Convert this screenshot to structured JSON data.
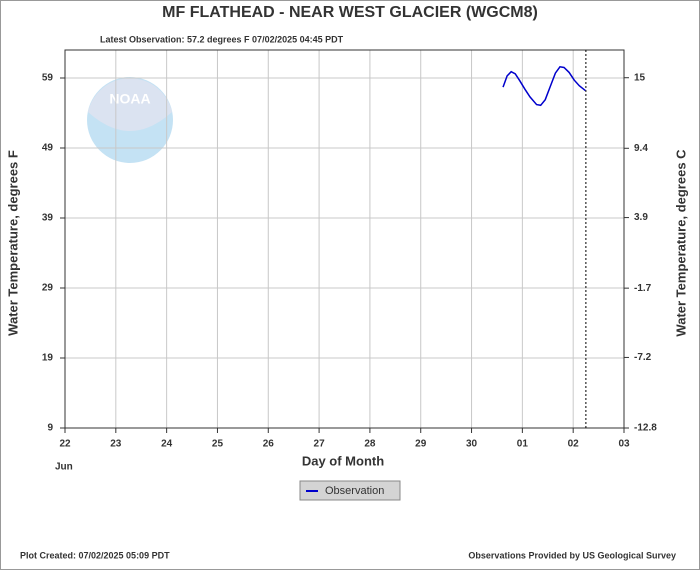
{
  "chart_data": {
    "type": "line",
    "title": "MF FLATHEAD - NEAR WEST GLACIER  (WGCM8)",
    "subtitle": "Latest Observation: 57.2 degrees F 07/02/2025 04:45 PDT",
    "ylabel": "Water Temperature, degrees F",
    "y2label": "Water Temperature, degrees C",
    "xlabel": "Day of Month",
    "month_label": "Jun",
    "logo_text": "NOAA",
    "footer_left": "Plot Created: 07/02/2025 05:09 PDT",
    "footer_right": "Observations Provided by US Geological Survey",
    "xlim": [
      0,
      11
    ],
    "xticks": [
      {
        "value": 0,
        "label": "22"
      },
      {
        "value": 1,
        "label": "23"
      },
      {
        "value": 2,
        "label": "24"
      },
      {
        "value": 3,
        "label": "25"
      },
      {
        "value": 4,
        "label": "26"
      },
      {
        "value": 5,
        "label": "27"
      },
      {
        "value": 6,
        "label": "28"
      },
      {
        "value": 7,
        "label": "29"
      },
      {
        "value": 8,
        "label": "30"
      },
      {
        "value": 9,
        "label": "01"
      },
      {
        "value": 10,
        "label": "02"
      },
      {
        "value": 11,
        "label": "03"
      }
    ],
    "ylim": [
      9,
      63
    ],
    "yticks": [
      9,
      19,
      29,
      39,
      49,
      59
    ],
    "y2lim": [
      -12.8,
      17.2
    ],
    "y2ticks": [
      -12.8,
      -7.2,
      -1.7,
      3.9,
      9.4,
      15
    ],
    "grid": true,
    "current_time_x": 10.25,
    "x": [
      8.62,
      8.7,
      8.78,
      8.86,
      8.95,
      9.05,
      9.15,
      9.28,
      9.36,
      9.45,
      9.55,
      9.65,
      9.74,
      9.82,
      9.92,
      10.02,
      10.12,
      10.24
    ],
    "series": [
      {
        "name": "Observation",
        "color": "#0000cc",
        "values": [
          57.7,
          59.3,
          59.9,
          59.6,
          58.6,
          57.4,
          56.3,
          55.2,
          55.1,
          55.9,
          57.8,
          59.7,
          60.6,
          60.5,
          59.8,
          58.7,
          57.9,
          57.2
        ]
      }
    ]
  }
}
